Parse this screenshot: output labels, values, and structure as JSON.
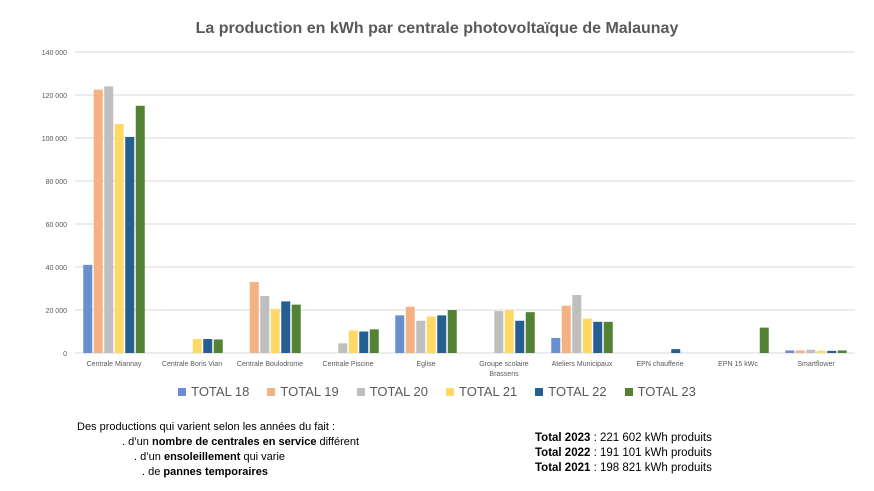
{
  "chart_data": {
    "type": "bar",
    "title": "La production en kWh par centrale photovoltaïque de Malaunay",
    "xlabel": "",
    "ylabel": "",
    "ylim": [
      0,
      140000
    ],
    "yticks": [
      0,
      20000,
      40000,
      60000,
      80000,
      100000,
      120000,
      140000
    ],
    "ytick_labels": [
      "0",
      "20 000",
      "40 000",
      "60 000",
      "80 000",
      "100 000",
      "120 000",
      "140 000"
    ],
    "grid": true,
    "legend_position": "bottom",
    "categories": [
      "Centrale Miannay",
      "Centrale Boris Vian",
      "Centrale Boulodrome",
      "Centrale Piscine",
      "Eglise",
      "Groupe scolaire Brassens",
      "Ateliers Municipaux",
      "EPN chaufferie",
      "EPN 15 kWc",
      "Smartflower"
    ],
    "series": [
      {
        "name": "TOTAL 18",
        "color": "#6a8fd0",
        "values": [
          41000,
          0,
          0,
          0,
          17500,
          0,
          7000,
          0,
          0,
          1200
        ]
      },
      {
        "name": "TOTAL 19",
        "color": "#f4b183",
        "values": [
          122500,
          0,
          33000,
          0,
          21500,
          0,
          22000,
          0,
          0,
          1200
        ]
      },
      {
        "name": "TOTAL 20",
        "color": "#bfbfbf",
        "values": [
          124000,
          0,
          26500,
          4500,
          15000,
          19500,
          27000,
          0,
          0,
          1500
        ]
      },
      {
        "name": "TOTAL 21",
        "color": "#ffd966",
        "values": [
          106500,
          6500,
          20500,
          10500,
          17000,
          20000,
          16000,
          0,
          0,
          1000
        ]
      },
      {
        "name": "TOTAL 22",
        "color": "#255e91",
        "values": [
          100500,
          6500,
          24000,
          10000,
          17500,
          15000,
          14500,
          1800,
          0,
          1000
        ]
      },
      {
        "name": "TOTAL 23",
        "color": "#548235",
        "values": [
          115000,
          6300,
          22500,
          11000,
          20000,
          19000,
          14500,
          0,
          11800,
          1200
        ]
      }
    ]
  },
  "notes": {
    "intro": "Des productions qui varient selon les années du fait :",
    "l1_pre": ". d’un ",
    "l1_bold": "nombre de centrales en service",
    "l1_post": " différent",
    "l2_pre": ". d’un ",
    "l2_bold": "ensoleillement",
    "l2_post": " qui varie",
    "l3_pre": ". de ",
    "l3_bold": "pannes temporaires"
  },
  "totals": [
    {
      "label": "Total 2023",
      "value": " : 221 602 kWh produits"
    },
    {
      "label": "Total 2022",
      "value": " : 191 101 kWh produits"
    },
    {
      "label": "Total 2021",
      "value": " : 198 821 kWh produits"
    }
  ]
}
